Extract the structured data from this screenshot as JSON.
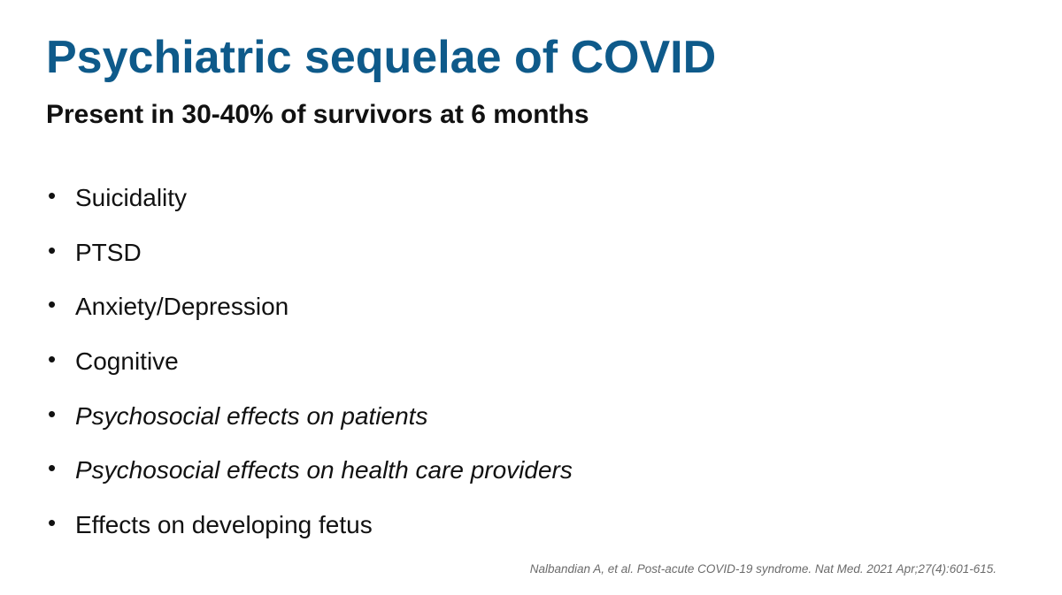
{
  "slide": {
    "title": "Psychiatric sequelae of COVID",
    "subtitle": "Present in 30-40% of survivors at 6 months",
    "title_color": "#0e5a8a",
    "bullet_glyph": "•",
    "bullets": [
      {
        "text": "Suicidality",
        "italic": false
      },
      {
        "text": "PTSD",
        "italic": false
      },
      {
        "text": "Anxiety/Depression",
        "italic": false
      },
      {
        "text": "Cognitive",
        "italic": false
      },
      {
        "text": "Psychosocial effects on patients",
        "italic": true
      },
      {
        "text": "Psychosocial effects on health care providers",
        "italic": true
      },
      {
        "text": "Effects on developing fetus",
        "italic": false
      }
    ],
    "citation": "Nalbandian A, et al. Post-acute COVID-19 syndrome. Nat Med. 2021 Apr;27(4):601-615."
  }
}
